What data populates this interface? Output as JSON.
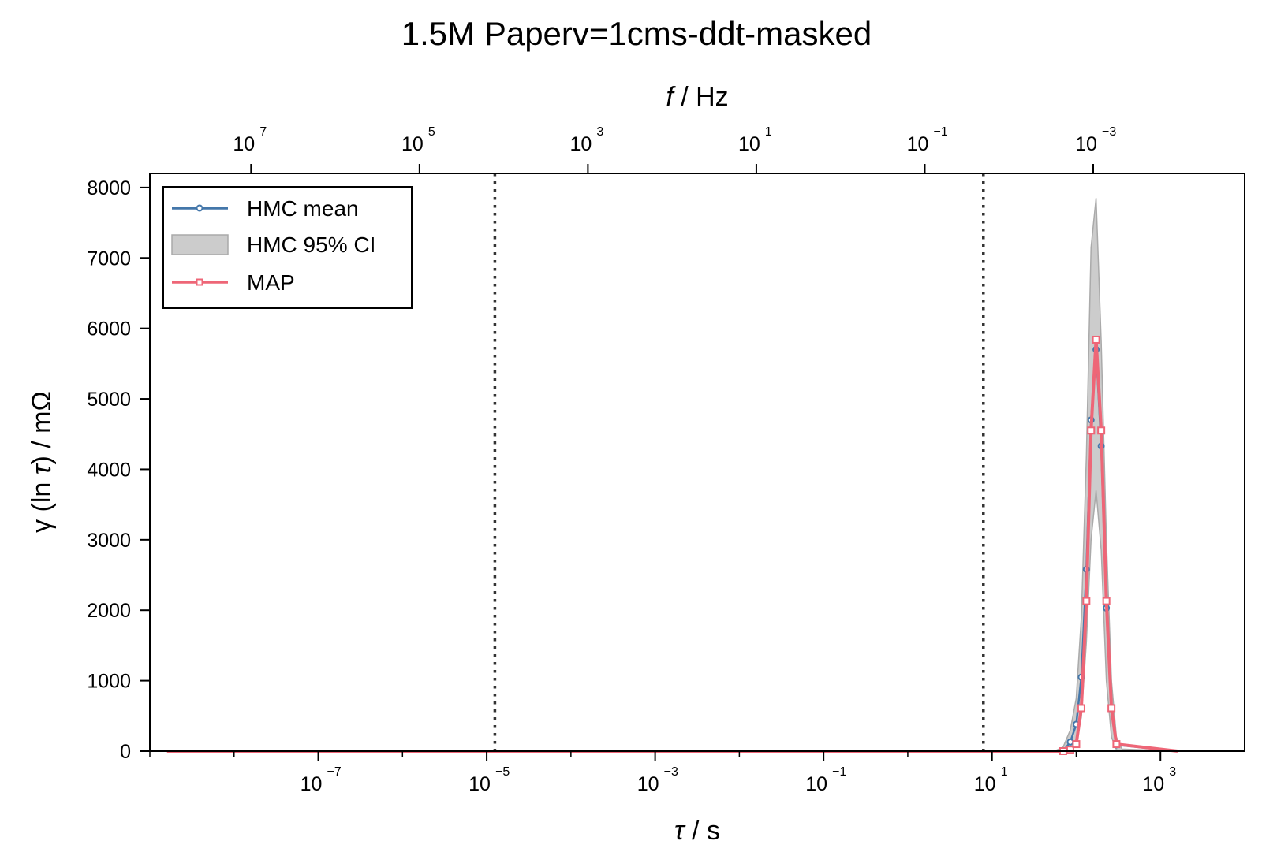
{
  "chart_data": {
    "type": "line",
    "title": "1.5M Paperv=1cms-ddt-masked",
    "xlabel_symbol": "τ",
    "xlabel_unit": "/ s",
    "ylabel_left": "γ (ln ",
    "ylabel_symbol": "τ",
    "ylabel_right": ") / mΩ",
    "top_xlabel_symbol": "f",
    "top_xlabel_unit": "/ Hz",
    "x_scale": "log",
    "xlim": [
      1e-09,
      10000
    ],
    "ylim": [
      0,
      8200
    ],
    "yticks": [
      0,
      1000,
      2000,
      3000,
      4000,
      5000,
      6000,
      7000,
      8000
    ],
    "xticks": [
      {
        "value": 1e-07,
        "label": "−7"
      },
      {
        "value": 1e-05,
        "label": "−5"
      },
      {
        "value": 0.001,
        "label": "−3"
      },
      {
        "value": 0.1,
        "label": "−1"
      },
      {
        "value": 10,
        "label": "1"
      },
      {
        "value": 1000,
        "label": "3"
      }
    ],
    "top_xticks": [
      {
        "value": 10000000.0,
        "label": "7"
      },
      {
        "value": 100000.0,
        "label": "5"
      },
      {
        "value": 1000.0,
        "label": "3"
      },
      {
        "value": 10,
        "label": "1"
      },
      {
        "value": 0.1,
        "label": "−1"
      },
      {
        "value": 0.001,
        "label": "−3"
      }
    ],
    "tick_base": "10",
    "vlines": [
      1.25e-05,
      7.9
    ],
    "legend": {
      "position": "top-left",
      "entries": [
        "HMC mean",
        "HMC 95% CI",
        "MAP"
      ]
    },
    "series": [
      {
        "name": "HMC mean",
        "color": "#4477aa",
        "x": [
          1.6e-09,
          70,
          85,
          100,
          115,
          132,
          150,
          172,
          198,
          228,
          262,
          300,
          1600
        ],
        "y": [
          0,
          0,
          130,
          380,
          1050,
          2580,
          4700,
          5700,
          4330,
          2030,
          600,
          90,
          0
        ]
      },
      {
        "name": "MAP",
        "color": "#ee6677",
        "x": [
          1.6e-09,
          70,
          85,
          100,
          115,
          132,
          150,
          172,
          198,
          228,
          262,
          300,
          1600
        ],
        "y": [
          0,
          0,
          20,
          100,
          610,
          2130,
          4550,
          5840,
          4550,
          2130,
          610,
          100,
          0
        ]
      }
    ],
    "ci_band": {
      "name": "HMC 95% CI",
      "color": "#bbbbbb",
      "x": [
        1.6e-09,
        55,
        70,
        85,
        100,
        115,
        132,
        150,
        172,
        198,
        228,
        262,
        300,
        350,
        1600
      ],
      "lower": [
        0,
        0,
        0,
        40,
        150,
        480,
        1550,
        3000,
        3700,
        2850,
        1000,
        200,
        20,
        0,
        0
      ],
      "upper": [
        0,
        0,
        60,
        300,
        750,
        1900,
        4200,
        7150,
        7850,
        5800,
        3000,
        1000,
        200,
        30,
        0
      ]
    }
  }
}
